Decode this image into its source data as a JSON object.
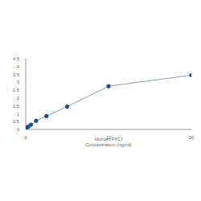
{
  "chart_data": {
    "type": "line",
    "x": [
      0.156,
      0.313,
      0.625,
      1.25,
      2.5,
      5,
      10,
      20
    ],
    "values": [
      0.12,
      0.18,
      0.3,
      0.55,
      0.85,
      1.45,
      2.75,
      3.45
    ],
    "x_label": "Human FXCI\nConcentration (ng/ml)",
    "y_label": "OD",
    "xlim": [
      0,
      20
    ],
    "xticks": [
      0,
      10,
      20
    ],
    "ylim": [
      0,
      4.5
    ],
    "yticks": [
      0,
      0.5,
      1,
      1.5,
      2,
      2.5,
      3,
      3.5,
      4,
      4.5
    ],
    "color": "#1f4e8c",
    "marker": "circle",
    "grid": false
  }
}
